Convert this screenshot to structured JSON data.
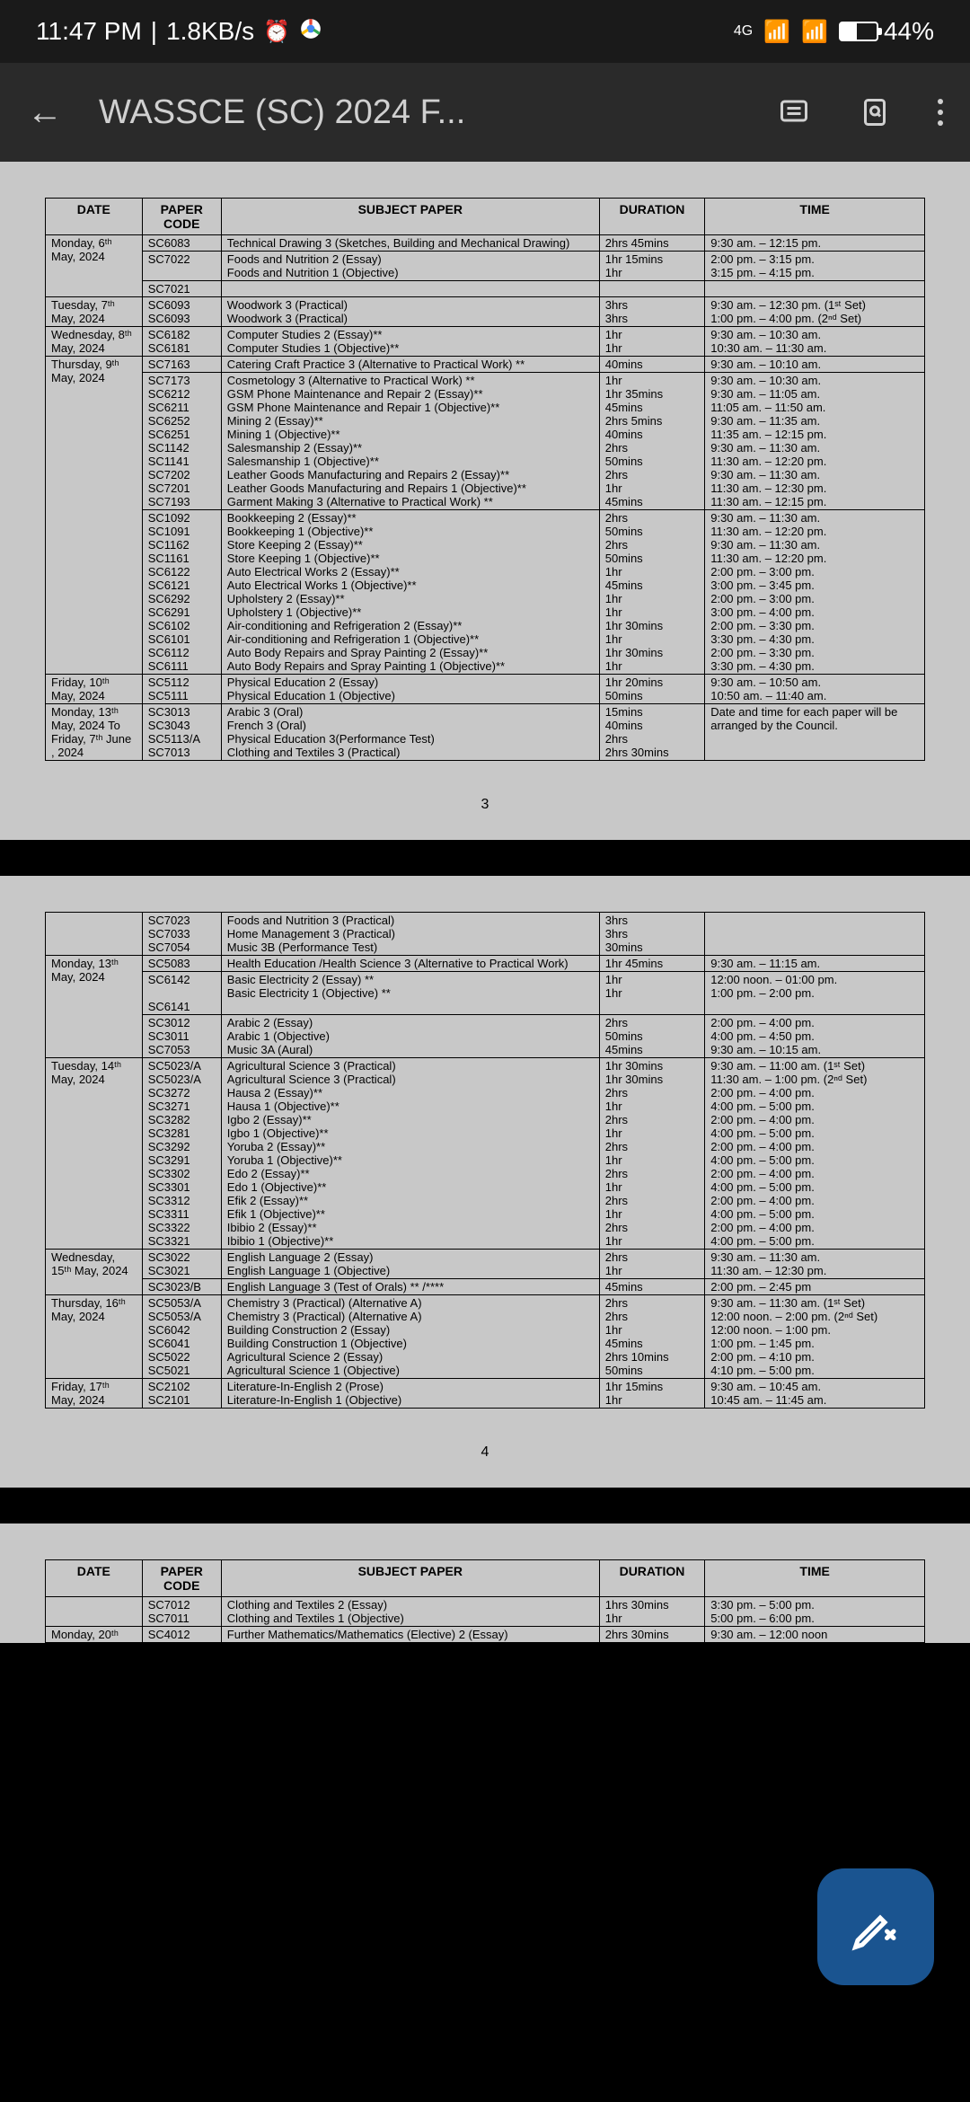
{
  "status": {
    "time": "11:47 PM",
    "data_rate": "1.8KB/s",
    "network": "4G",
    "battery": "44%"
  },
  "app": {
    "title": "WASSCE (SC) 2024 F..."
  },
  "page1_num": "3",
  "page2_num": "4",
  "headers": {
    "date": "DATE",
    "code": "PAPER CODE",
    "subject": "SUBJECT PAPER",
    "duration": "DURATION",
    "time": "TIME"
  },
  "page1_rows": [
    {
      "date": "Monday, 6ᵗʰ May, 2024",
      "code": "SC6083",
      "subject": "Technical Drawing 3 (Sketches, Building and Mechanical Drawing)",
      "dur": "2hrs 45mins",
      "time": "9:30 am.  –  12:15 pm.",
      "dateSpan": 3
    },
    {
      "code": "SC7022",
      "subject": "Foods and Nutrition 2 (Essay)<br>Foods and Nutrition 1 (Objective)",
      "dur": "1hr 15mins<br>1hr",
      "time": "2:00 pm.  –  3:15 pm.<br>3:15 pm.  –  4:15 pm."
    },
    {
      "code": "SC7021",
      "subject": "",
      "dur": "",
      "time": ""
    },
    {
      "date": "Tuesday, 7ᵗʰ May,  2024",
      "code": "SC6093<br>SC6093",
      "subject": "Woodwork 3 (Practical)<br>Woodwork 3 (Practical)",
      "dur": "3hrs<br>3hrs",
      "time": "9:30 am.   –   12:30 pm. (1ˢᵗ Set)<br>1:00 pm.   –   4:00 pm. (2ⁿᵈ Set)",
      "dateSpan": 1
    },
    {
      "date": "Wednesday, 8ᵗʰ May,  2024",
      "code": "SC6182<br>SC6181",
      "subject": "Computer Studies 2 (Essay)**<br>Computer Studies 1 (Objective)**",
      "dur": "1hr<br>1hr",
      "time": "9:30 am.  –  10:30 am.<br>10:30 am. – 11:30 am.",
      "dateSpan": 1
    },
    {
      "date": "Thursday, 9ᵗʰ May,  2024",
      "code": "SC7163",
      "subject": "Catering Craft Practice 3 (Alternative to Practical Work) **",
      "dur": "40mins",
      "time": "9:30 am.  –  10:10 am.",
      "dateSpan": 3
    },
    {
      "code": "SC7173<br>SC6212<br>SC6211<br>SC6252<br>SC6251<br>SC1142<br>SC1141<br>SC7202<br>SC7201<br>SC7193",
      "subject": "Cosmetology 3 (Alternative to Practical Work) **<br>GSM Phone Maintenance and Repair 2 (Essay)**<br>GSM Phone Maintenance and Repair 1 (Objective)**<br>Mining 2 (Essay)**<br>Mining 1 (Objective)**<br>Salesmanship 2 (Essay)**<br>Salesmanship 1 (Objective)**<br>Leather Goods Manufacturing and Repairs 2 (Essay)**<br>Leather Goods Manufacturing and Repairs 1 (Objective)**<br>Garment Making 3 (Alternative to Practical Work) **",
      "dur": "1hr<br>1hr 35mins<br>45mins<br>2hrs 5mins<br>40mins<br>2hrs<br>50mins<br>2hrs<br>1hr<br>45mins",
      "time": "9:30 am.  –   10:30 am.<br>9:30 am.  –  11:05 am.<br>11:05 am. – 11:50 am.<br>9:30 am.  –  11:35 am.<br>11:35 am. – 12:15 pm.<br>9:30 am.  –  11:30 am.<br>11:30 am. – 12:20 pm.<br>9:30 am.  –  11:30 am.<br>11:30 am. – 12:30 pm.<br>11:30 am.  – 12:15 pm."
    },
    {
      "code": "SC1092<br>SC1091<br>SC1162<br>SC1161<br>SC6122<br>SC6121<br>SC6292<br>SC6291<br>SC6102<br>SC6101<br>SC6112<br>SC6111",
      "subject": "Bookkeeping 2 (Essay)**<br>Bookkeeping 1 (Objective)**<br>Store Keeping 2 (Essay)**<br>Store Keeping 1 (Objective)**<br>Auto Electrical Works 2 (Essay)**<br>Auto Electrical Works 1 (Objective)**<br>Upholstery 2 (Essay)**<br>Upholstery 1 (Objective)**<br>Air-conditioning and Refrigeration 2 (Essay)**<br>Air-conditioning and Refrigeration 1 (Objective)**<br>Auto Body Repairs and Spray Painting 2 (Essay)**<br>Auto Body Repairs and Spray Painting 1 (Objective)**",
      "dur": "2hrs<br>50mins<br>2hrs<br>50mins<br>1hr<br>45mins<br>1hr<br>1hr<br>1hr 30mins<br>1hr<br>1hr 30mins<br>1hr",
      "time": "9:30 am.  –  11:30 am.<br>11:30 am. – 12:20 pm.<br>9:30 am.  –  11:30 am.<br>11:30 am. – 12:20 pm.<br>2:00 pm.  –  3:00 pm.<br>3:00 pm.  –  3:45 pm.<br>2:00 pm.  –  3:00 pm.<br>3:00 pm.  – 4:00 pm.<br>2:00 pm.  –  3:30 pm.<br>3:30 pm.  –  4:30 pm.<br>2:00 pm.  –  3:30 pm.<br>3:30 pm.  –  4:30 pm."
    },
    {
      "date": "Friday, 10ᵗʰ May,  2024",
      "code": "SC5112<br>SC5111",
      "subject": "Physical Education 2 (Essay)<br>Physical Education 1 (Objective)",
      "dur": "1hr 20mins<br>50mins",
      "time": "9:30 am.  –  10:50 am.<br>10:50 am. – 11:40 am.",
      "dateSpan": 1
    },
    {
      "date": "Monday, 13ᵗʰ May, 2024 To Friday, 7ᵗʰ  June , 2024",
      "code": "SC3013<br>SC3043<br>SC5113/A<br>SC7013",
      "subject": "Arabic 3 (Oral)<br>French 3 (Oral)<br>Physical Education 3(Performance Test)<br>Clothing and Textiles 3 (Practical)",
      "dur": "15mins<br>40mins<br>2hrs<br>2hrs 30mins",
      "time": "Date and time for each paper will be arranged by the Council.",
      "dateSpan": 1
    }
  ],
  "page2_rows": [
    {
      "date": "",
      "code": "SC7023<br>SC7033<br>SC7054",
      "subject": "Foods and Nutrition 3 (Practical)<br>Home Management 3 (Practical)<br>Music 3B (Performance Test)",
      "dur": "3hrs<br>3hrs<br>30mins",
      "time": "",
      "dateSpan": 1
    },
    {
      "date": "Monday, 13ᵗʰ May,  2024",
      "code": "SC5083",
      "subject": "Health Education /Health Science 3 (Alternative to Practical Work)",
      "dur": "1hr 45mins",
      "time": "9:30 am.  –   11:15 am.",
      "dateSpan": 3
    },
    {
      "code": "SC6142<br><br>SC6141",
      "subject": "Basic Electricity 2 (Essay) **<br>Basic Electricity 1 (Objective) **",
      "dur": "1hr<br>1hr",
      "time": "12:00 noon. – 01:00 pm.<br>1:00 pm.  –  2:00 pm."
    },
    {
      "code": "SC3012<br>SC3011<br>SC7053",
      "subject": "Arabic 2 (Essay)<br>Arabic 1 (Objective)<br>Music 3A (Aural)",
      "dur": "2hrs<br>50mins<br>45mins",
      "time": "2:00 pm.  –  4:00 pm.<br>4:00 pm.  –  4:50 pm.<br>9:30 am.  –   10:15 am."
    },
    {
      "date": "Tuesday, 14ᵗʰ May, 2024",
      "code": "SC5023/A<br>SC5023/A<br>SC3272<br>SC3271<br>SC3282<br>SC3281<br>SC3292<br>SC3291<br>SC3302<br>SC3301<br>SC3312<br>SC3311<br>SC3322<br>SC3321",
      "subject": "Agricultural Science 3 (Practical)<br>Agricultural Science 3 (Practical)<br>Hausa 2 (Essay)**<br>Hausa 1 (Objective)**<br>Igbo 2 (Essay)**<br>Igbo 1 (Objective)**<br>Yoruba 2 (Essay)**<br>Yoruba 1 (Objective)**<br>Edo 2 (Essay)**<br>Edo 1 (Objective)**<br>Efik 2 (Essay)**<br>Efik 1 (Objective)**<br>Ibibio 2 (Essay)**<br>Ibibio 1 (Objective)**",
      "dur": "1hr 30mins<br>1hr 30mins<br>2hrs<br>1hr<br>2hrs<br>1hr<br>2hrs<br>1hr<br>2hrs<br>1hr<br>2hrs<br>1hr<br>2hrs<br>1hr",
      "time": "9:30 am.  –  11:00 am. (1ˢᵗ Set)<br>11:30 am. – 1:00 pm. (2ⁿᵈ Set)<br>2:00 pm.  –  4:00 pm.<br>4:00 pm.  –  5:00 pm.<br>2:00 pm.  –  4:00 pm.<br>4:00 pm.  –  5:00 pm.<br>2:00 pm.  –  4:00 pm.<br>4:00 pm.  –  5:00 pm.<br>2:00 pm.  –  4:00 pm.<br>4:00 pm.  –  5:00 pm.<br>2:00 pm.  –  4:00 pm.<br>4:00 pm.  –  5:00 pm.<br>2:00 pm.  –  4:00 pm.<br>4:00 pm.  –  5:00 pm.",
      "dateSpan": 1
    },
    {
      "date": "Wednesday, 15ᵗʰ May, 2024",
      "code": "SC3022<br>SC3021",
      "subject": "English Language 2 (Essay)<br>English Language 1 (Objective)",
      "dur": "2hrs<br>1hr",
      "time": "9:30 am.  –  11:30 am.<br>11:30 am. – 12:30 pm.",
      "dateSpan": 2
    },
    {
      "code": "SC3023/B",
      "subject": "English Language 3 (Test of Orals) ** /****",
      "dur": "45mins",
      "time": "2:00 pm.  –  2:45 pm"
    },
    {
      "date": "Thursday, 16ᵗʰ May, 2024",
      "code": "SC5053/A<br>SC5053/A<br>SC6042<br>SC6041<br>SC5022<br>SC5021",
      "subject": "Chemistry 3 (Practical) (Alternative A)<br>Chemistry 3 (Practical) (Alternative A)<br>Building Construction 2 (Essay)<br>Building Construction 1 (Objective)<br>Agricultural Science 2 (Essay)<br>Agricultural Science 1 (Objective)",
      "dur": "2hrs<br>2hrs<br>1hr<br>45mins<br>2hrs 10mins<br>50mins",
      "time": "9:30 am.  –   11:30 am. (1ˢᵗ Set)<br>12:00 noon. – 2:00 pm. (2ⁿᵈ Set)<br>12:00 noon.  – 1:00 pm.<br>1:00 pm.  – 1:45 pm.<br>2:00 pm.  –  4:10 pm.<br>4:10 pm.  –  5:00 pm.",
      "dateSpan": 1
    },
    {
      "date": "Friday, 17ᵗʰ May, 2024",
      "code": "SC2102<br>SC2101",
      "subject": "Literature-In-English 2 (Prose)<br>Literature-In-English 1 (Objective)",
      "dur": "1hr 15mins<br>1hr",
      "time": "9:30 am.  –  10:45 am.<br>10:45 am. – 11:45 am.",
      "dateSpan": 1
    }
  ],
  "page3_rows": [
    {
      "date": "",
      "code": "SC7012<br>SC7011",
      "subject": "Clothing and Textiles 2 (Essay)<br>Clothing and Textiles 1 (Objective)",
      "dur": "1hrs 30mins<br>1hr",
      "time": "3:30 pm.  –  5:00 pm.<br>5:00 pm.  –  6:00 pm.",
      "dateSpan": 1
    }
  ],
  "page3_bottom_row": {
    "date": "Monday, 20ᵗʰ",
    "code": "SC4012",
    "subject": "Further Mathematics/Mathematics (Elective) 2 (Essay)",
    "dur": "2hrs 30mins",
    "time": "9:30 am.  –   12:00 noon"
  }
}
